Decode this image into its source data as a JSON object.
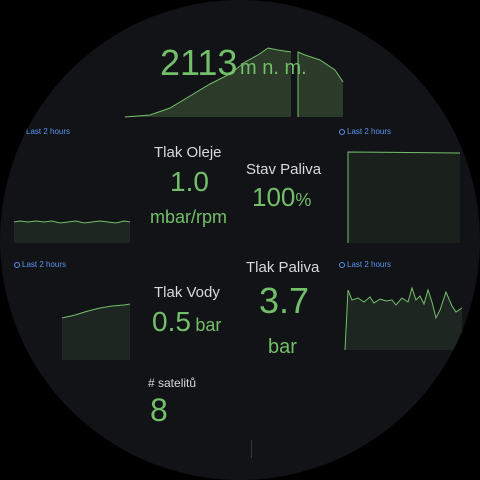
{
  "altitude": {
    "value": "2113",
    "unit": "m n. m."
  },
  "time_range_label": "Last 2 hours",
  "oil_pressure": {
    "title": "Tlak Oleje",
    "value": "1.0",
    "unit": "mbar/rpm"
  },
  "fuel_state": {
    "title": "Stav Paliva",
    "value": "100",
    "unit": "%"
  },
  "water_pressure": {
    "title": "Tlak Vody",
    "value": "0.5",
    "unit": "bar"
  },
  "fuel_pressure": {
    "title": "Tlak Paliva",
    "value": "3.7",
    "unit": "bar"
  },
  "satellites": {
    "title": "# satelitů",
    "value": "8"
  },
  "colors": {
    "background": "#121317",
    "value": "#73bf69",
    "label": "#d8d9da",
    "time_link": "#5794f2"
  }
}
